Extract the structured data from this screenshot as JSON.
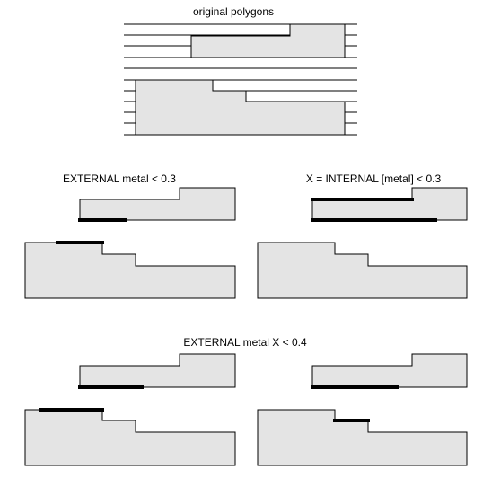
{
  "labels": {
    "original": "original polygons",
    "external": "EXTERNAL metal < 0.3",
    "internal": "X = INTERNAL [metal] < 0.3",
    "external_x": "EXTERNAL metal X < 0.4"
  },
  "colors": {
    "polygon_fill": "#e4e4e4",
    "outline": "#000000",
    "marker": "#000000"
  }
}
